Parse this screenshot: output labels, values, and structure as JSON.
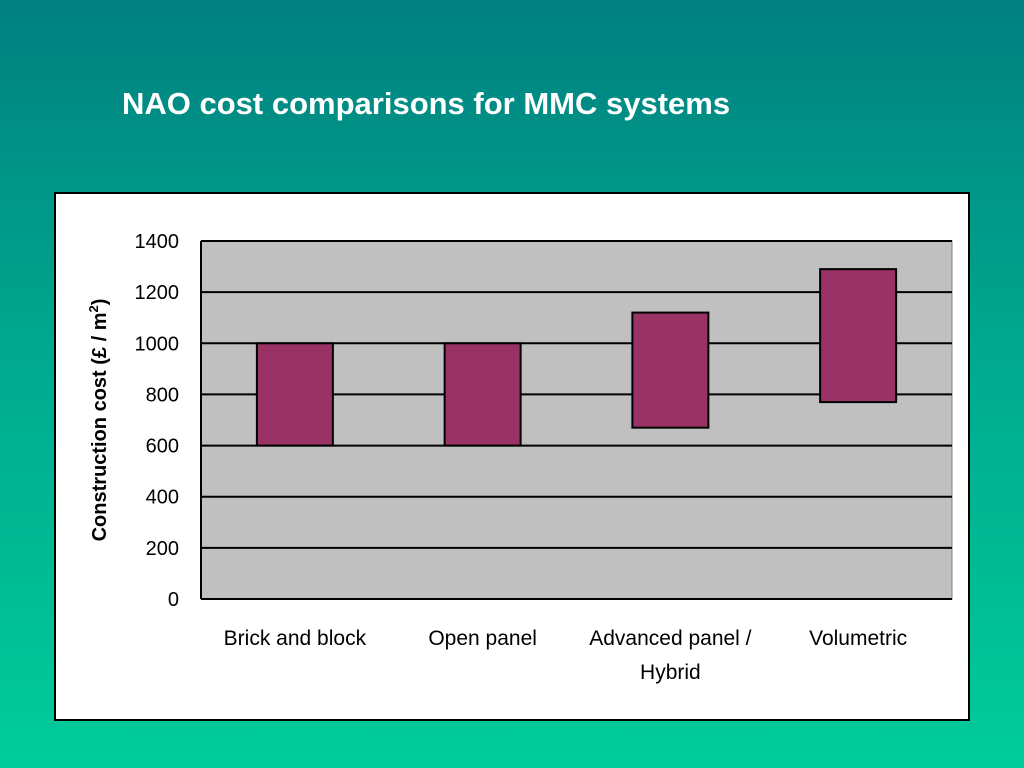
{
  "slide": {
    "title": "NAO cost comparisons for MMC systems"
  },
  "colors": {
    "background_top": "#008080",
    "background_bottom": "#00cc99",
    "plot_background": "#c0c0c0",
    "bar_fill": "#993366",
    "bar_stroke": "#000000",
    "gridline": "#000000"
  },
  "chart_data": {
    "type": "bar",
    "subtype": "floating-range",
    "title": "",
    "xlabel": "",
    "ylabel": {
      "text": "Construction cost (£ / m",
      "superscript": "2",
      "suffix": ")"
    },
    "ylim": [
      0,
      1400
    ],
    "yticks": [
      0,
      200,
      400,
      600,
      800,
      1000,
      1200,
      1400
    ],
    "grid": true,
    "legend": "none",
    "categories": [
      [
        "Brick and block"
      ],
      [
        "Open panel"
      ],
      [
        "Advanced panel /",
        "Hybrid"
      ],
      [
        "Volumetric"
      ]
    ],
    "ranges": [
      {
        "low": 600,
        "high": 1000
      },
      {
        "low": 600,
        "high": 1000
      },
      {
        "low": 670,
        "high": 1120
      },
      {
        "low": 770,
        "high": 1290
      }
    ]
  }
}
